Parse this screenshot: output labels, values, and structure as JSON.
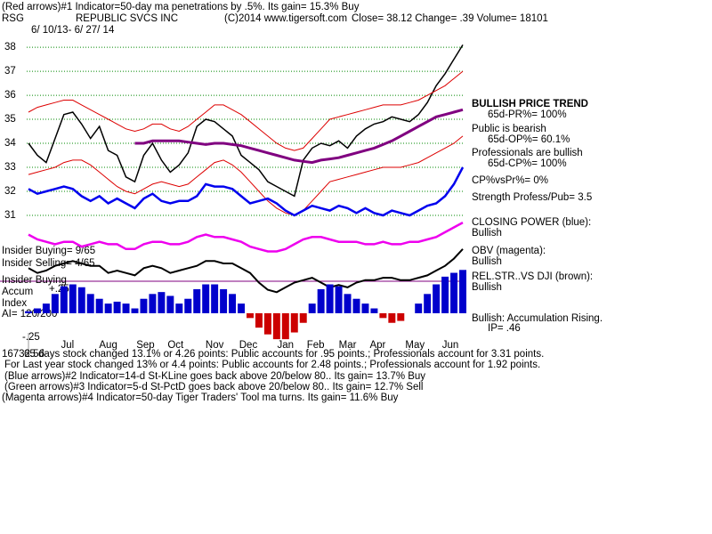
{
  "header": {
    "line1": "(Red arrows)#1 Indicator=50-day ma penetrations by .5%.  Its gain= 15.3% Buy",
    "symbol": "RSG",
    "company": "REPUBLIC SVCS INC",
    "copyright": "(C)2014 www.tigersoft.com",
    "quote": "Close=  38.12  Change= .39 Volume= 18101",
    "dates": "6/ 10/13- 6/ 27/ 14"
  },
  "chart_data": {
    "type": "line",
    "x": [
      0,
      5,
      10,
      15,
      20,
      25,
      30,
      35,
      40,
      45,
      50,
      55,
      60,
      65,
      70,
      75,
      80,
      85,
      90,
      95,
      100,
      105,
      110,
      115,
      120,
      125,
      130,
      135,
      140,
      145,
      150,
      155,
      160,
      165,
      170,
      175,
      180,
      185,
      190,
      195,
      200,
      205,
      210,
      215,
      220,
      225,
      230,
      235,
      240,
      245
    ],
    "xlim": [
      -1,
      246
    ],
    "xticks": [
      {
        "value": 22,
        "label": "Jul"
      },
      {
        "value": 45,
        "label": "Aug"
      },
      {
        "value": 66,
        "label": "Sep"
      },
      {
        "value": 83,
        "label": "Oct"
      },
      {
        "value": 105,
        "label": "Nov"
      },
      {
        "value": 124,
        "label": "Dec"
      },
      {
        "value": 145,
        "label": "Jan"
      },
      {
        "value": 162,
        "label": "Feb"
      },
      {
        "value": 180,
        "label": "Mar"
      },
      {
        "value": 197,
        "label": "Apr"
      },
      {
        "value": 218,
        "label": "May"
      },
      {
        "value": 238,
        "label": "Jun"
      }
    ],
    "ylim": [
      25.7,
      38.3
    ],
    "yticks": [
      31,
      32,
      33,
      34,
      35,
      36,
      37,
      38
    ],
    "grid": true,
    "y2lim": [
      -0.306,
      2.84
    ],
    "y2ticks": [
      {
        "value": 0.25,
        "label": "+.25"
      },
      {
        "value": -0.25,
        "label": "-.25"
      }
    ],
    "series": [
      {
        "name": "price",
        "color": "#000000",
        "width": 1.5,
        "values": [
          34,
          33.5,
          33.2,
          34.2,
          35.2,
          35.3,
          34.8,
          34.2,
          34.7,
          33.7,
          33.5,
          32.6,
          32.4,
          33.5,
          34,
          33.3,
          32.8,
          33.1,
          33.6,
          34.7,
          35,
          34.9,
          34.6,
          34.3,
          33.5,
          33.2,
          32.9,
          32.4,
          32.2,
          32,
          31.8,
          33.3,
          33.8,
          34,
          33.9,
          34.1,
          33.8,
          34.3,
          34.6,
          34.8,
          34.9,
          35.1,
          35,
          34.9,
          35.2,
          35.7,
          36.4,
          36.9,
          37.5,
          38.1
        ]
      },
      {
        "name": "upper band",
        "color": "#dd0000",
        "width": 1,
        "values": [
          35.3,
          35.5,
          35.6,
          35.7,
          35.8,
          35.8,
          35.6,
          35.4,
          35.2,
          35,
          34.8,
          34.6,
          34.5,
          34.6,
          34.8,
          34.8,
          34.6,
          34.5,
          34.7,
          35,
          35.3,
          35.6,
          35.6,
          35.4,
          35.2,
          34.9,
          34.6,
          34.3,
          34,
          33.8,
          33.7,
          33.8,
          34.2,
          34.6,
          35,
          35.1,
          35.2,
          35.3,
          35.4,
          35.5,
          35.6,
          35.6,
          35.6,
          35.7,
          35.8,
          36,
          36.2,
          36.4,
          36.7,
          37
        ]
      },
      {
        "name": "lower band",
        "color": "#dd0000",
        "width": 1,
        "values": [
          32.7,
          32.8,
          32.9,
          33,
          33.2,
          33.3,
          33.3,
          33.1,
          32.8,
          32.5,
          32.2,
          32,
          31.9,
          32.1,
          32.3,
          32.4,
          32.3,
          32.2,
          32.3,
          32.6,
          32.9,
          33.2,
          33.3,
          33.1,
          32.8,
          32.4,
          32,
          31.6,
          31.3,
          31.1,
          31,
          31.2,
          31.6,
          32,
          32.4,
          32.5,
          32.6,
          32.7,
          32.8,
          32.9,
          33,
          33,
          33,
          33.1,
          33.2,
          33.4,
          33.6,
          33.8,
          34,
          34.3
        ]
      },
      {
        "name": "50-day ma",
        "color": "#800080",
        "width": 3,
        "values": [
          null,
          null,
          null,
          null,
          null,
          null,
          null,
          null,
          null,
          null,
          null,
          null,
          34,
          34,
          34.1,
          34.1,
          34.1,
          34.1,
          34.05,
          34,
          33.95,
          34,
          34,
          33.95,
          33.9,
          33.8,
          33.7,
          33.6,
          33.5,
          33.4,
          33.3,
          33.25,
          33.2,
          33.3,
          33.35,
          33.4,
          33.5,
          33.6,
          33.7,
          33.8,
          33.95,
          34.1,
          34.3,
          34.5,
          34.7,
          34.9,
          35.1,
          35.2,
          35.3,
          35.4
        ]
      },
      {
        "name": "closing power",
        "color": "#0000ee",
        "width": 2.5,
        "values": [
          32.1,
          31.9,
          32,
          32.1,
          32.2,
          32.1,
          31.8,
          31.6,
          31.8,
          31.5,
          31.7,
          31.5,
          31.3,
          31.7,
          31.9,
          31.6,
          31.5,
          31.6,
          31.6,
          31.8,
          32.3,
          32.2,
          32.2,
          32.1,
          31.8,
          31.5,
          31.6,
          31.7,
          31.5,
          31.2,
          31,
          31.2,
          31.4,
          31.3,
          31.2,
          31.4,
          31.3,
          31.1,
          31.3,
          31.1,
          31,
          31.2,
          31.1,
          31,
          31.2,
          31.4,
          31.5,
          31.8,
          32.3,
          33
        ]
      },
      {
        "name": "obv",
        "color": "#ee00ee",
        "width": 2.5,
        "values": [
          30.2,
          30,
          29.9,
          29.8,
          29.9,
          29.9,
          29.7,
          29.8,
          29.9,
          29.8,
          29.8,
          29.6,
          29.6,
          29.8,
          29.9,
          29.9,
          29.8,
          29.8,
          29.9,
          30.1,
          30.2,
          30.1,
          30.1,
          30,
          29.9,
          29.7,
          29.6,
          29.5,
          29.5,
          29.6,
          29.8,
          30,
          30.1,
          30.1,
          30,
          29.9,
          29.9,
          29.9,
          29.8,
          29.8,
          29.9,
          29.8,
          29.8,
          29.9,
          29.9,
          30,
          30.1,
          30.3,
          30.5,
          30.7
        ]
      },
      {
        "name": "rel str",
        "color": "#000000",
        "width": 2,
        "values": [
          28.8,
          28.6,
          28.7,
          28.9,
          29,
          29.1,
          29,
          28.9,
          28.9,
          28.6,
          28.7,
          28.6,
          28.5,
          28.8,
          28.9,
          28.8,
          28.6,
          28.7,
          28.8,
          28.9,
          29.1,
          29.1,
          29,
          29,
          28.8,
          28.6,
          28.2,
          27.9,
          27.8,
          28,
          28.2,
          28.3,
          28.4,
          28.2,
          28,
          28.1,
          28,
          28.2,
          28.3,
          28.3,
          28.4,
          28.4,
          28.3,
          28.3,
          28.4,
          28.5,
          28.7,
          28.9,
          29.2,
          29.6
        ]
      },
      {
        "name": "accumulation",
        "type": "bar",
        "axis": "y2",
        "color": "#0000cc",
        "negative_color": "#cc0000",
        "values": [
          0.02,
          0.05,
          0.1,
          0.2,
          0.28,
          0.3,
          0.27,
          0.2,
          0.15,
          0.1,
          0.12,
          0.1,
          0.05,
          0.15,
          0.2,
          0.22,
          0.18,
          0.1,
          0.15,
          0.25,
          0.3,
          0.3,
          0.25,
          0.2,
          0.1,
          -0.05,
          -0.15,
          -0.22,
          -0.27,
          -0.27,
          -0.2,
          -0.1,
          0.1,
          0.25,
          0.3,
          0.28,
          0.2,
          0.15,
          0.1,
          0.05,
          -0.05,
          -0.1,
          -0.08,
          0,
          0.1,
          0.2,
          0.3,
          0.38,
          0.42,
          0.45
        ]
      }
    ]
  },
  "left_panel": {
    "insider_buying": "Insider Buying= 9/65",
    "insider_selling": "Insider Selling= 4/65",
    "insider_line": "Insider Buying",
    "accum": "Accum",
    "index": "Index",
    "ai": "AI= 120/200"
  },
  "side_panel": {
    "trend": "BULLISH PRICE TREND",
    "pr": "65d-PR%= 100%",
    "public": "Public is bearish",
    "op": "65d-OP%= 60.1%",
    "pros": "Professionals are bullish",
    "cp": "65d-CP%= 100%",
    "cpvspr": "CP%vsPr%=  0%",
    "strength": "Strength Profess/Pub= 3.5",
    "closing_power": "CLOSING POWER (blue):",
    "closing_power_state": "Bullish",
    "obv": "OBV (magenta):",
    "obv_state": "Bullish",
    "relstr": "REL.STR..VS DJI (brown):",
    "relstr_state": "Bullish",
    "accum": "Bullish: Accumulation Rising.",
    "ip": "IP=  .46"
  },
  "footer": {
    "dji": "16732.56",
    "line1": "65 days stock changed  13.1% or  4.26 points:  Public accounts for  .95 points.;  Professionals account for  3.31 points.",
    "line2": "For Last year stock changed  13% or  4.4 points:  Public accounts for  2.48 points.;  Professionals account for  1.92 points.",
    "line3": "(Blue arrows)#2 Indicator=14-d St-KLine goes back above 20/below 80..  Its gain= 13.7% Buy",
    "line4": "(Green arrows)#3 Indicator=5-d St-PctD goes back above 20/below 80..  Its gain= 12.7% Sell",
    "line5": "(Magenta arrows)#4 Indicator=50-day Tiger Traders' Tool ma turns.  Its gain= 11.6% Buy"
  }
}
